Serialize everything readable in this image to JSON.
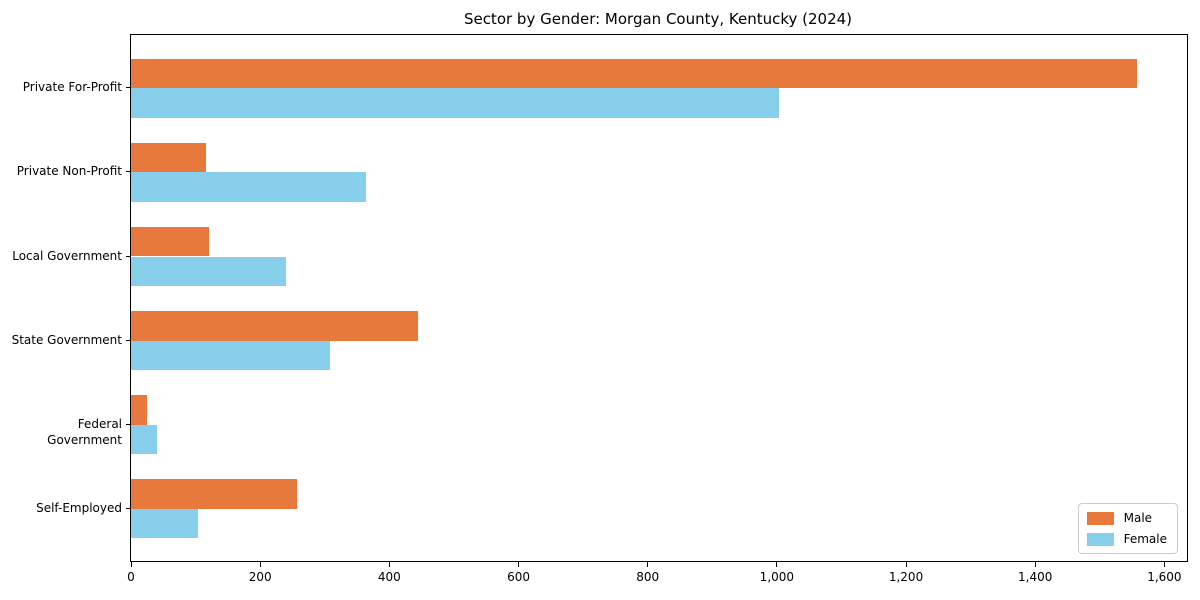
{
  "title": "Sector by Gender: Morgan County, Kentucky (2024)",
  "colors": {
    "male": "#E8793D",
    "female": "#87CEEB",
    "axis": "#000000",
    "legend_border": "#CCCCCC",
    "background": "#FFFFFF"
  },
  "legend": {
    "items": [
      {
        "label": "Male",
        "color": "#E8793D"
      },
      {
        "label": "Female",
        "color": "#87CEEB"
      }
    ],
    "position": "lower right"
  },
  "chart_data": {
    "type": "bar",
    "orientation": "horizontal",
    "title": "Sector by Gender: Morgan County, Kentucky (2024)",
    "categories": [
      "Private For-Profit",
      "Private Non-Profit",
      "Local Government",
      "State Government",
      "Federal Government",
      "Self-Employed"
    ],
    "series": [
      {
        "name": "Male",
        "color": "#E8793D",
        "values": [
          1557,
          116,
          120,
          444,
          25,
          257
        ]
      },
      {
        "name": "Female",
        "color": "#87CEEB",
        "values": [
          1003,
          364,
          240,
          308,
          41,
          103
        ]
      }
    ],
    "xlabel": "",
    "ylabel": "",
    "xlim": [
      0,
      1635
    ],
    "xticks": [
      0,
      200,
      400,
      600,
      800,
      1000,
      1200,
      1400,
      1600
    ],
    "xtick_labels": [
      "0",
      "200",
      "400",
      "600",
      "800",
      "1,000",
      "1,200",
      "1,400",
      "1,600"
    ],
    "grid": false,
    "legend_position": "lower right"
  }
}
